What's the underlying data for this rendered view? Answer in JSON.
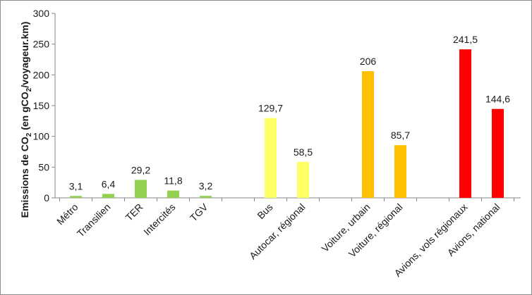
{
  "chart_data": {
    "type": "bar",
    "title": "",
    "xlabel": "",
    "ylabel": {
      "prefix": "Emissions de CO",
      "subscript_1": "2",
      "middle": " (en gCO",
      "subscript_2": "2",
      "suffix": "/voyageur.km)"
    },
    "ylim": [
      0,
      300
    ],
    "yticks": [
      "0",
      "50",
      "100",
      "150",
      "200",
      "250",
      "300"
    ],
    "grid": false,
    "legend": "none",
    "categories": [
      "Métro",
      "Transilien",
      "TER",
      "Intercités",
      "TGV",
      "Bus",
      "Autocar, régional",
      "Voiture, urbain",
      "Voiture, régional",
      "Avions, vols régionaux",
      "Avions, national"
    ],
    "values": [
      3.1,
      6.4,
      29.2,
      11.8,
      3.2,
      129.7,
      58.5,
      206,
      85.7,
      241.5,
      144.6
    ],
    "data_labels": [
      "3,1",
      "6,4",
      "29,2",
      "11,8",
      "3,2",
      "129,7",
      "58,5",
      "206",
      "85,7",
      "241,5",
      "144,6"
    ],
    "groups": [
      {
        "color": "#92d050",
        "count": 5
      },
      {
        "color": "#ffff66",
        "count": 2
      },
      {
        "color": "#ffc000",
        "count": 2
      },
      {
        "color": "#ff0000",
        "count": 2
      }
    ]
  }
}
